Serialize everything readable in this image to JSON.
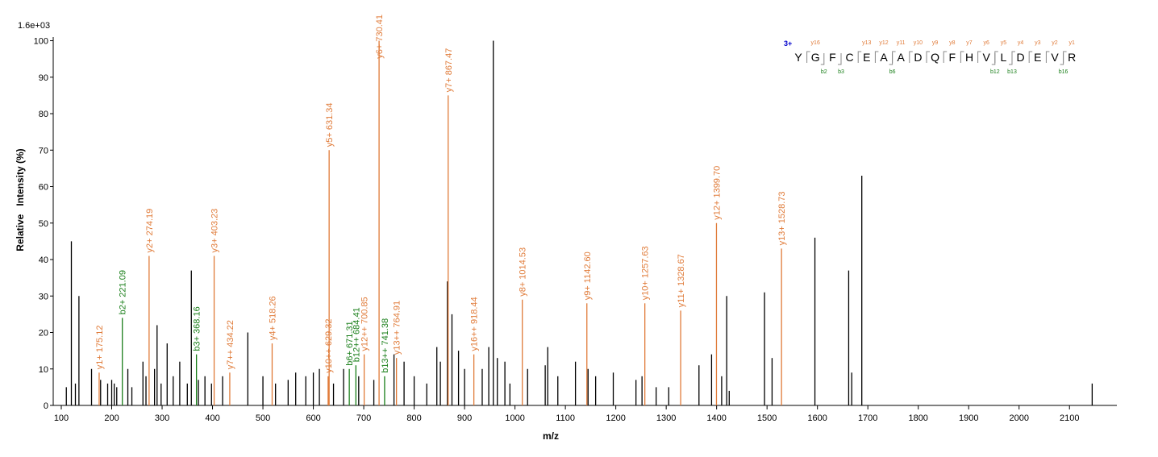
{
  "chart_data": {
    "type": "spectrum",
    "scale_label": "1.6e+03",
    "xlabel": "m/z",
    "ylabel": "Relative   Intensity (%)",
    "xlim": [
      84,
      2194
    ],
    "ylim": [
      0,
      101
    ],
    "xticks": [
      100,
      200,
      300,
      400,
      500,
      600,
      700,
      800,
      900,
      1000,
      1100,
      1200,
      1300,
      1400,
      1500,
      1600,
      1700,
      1800,
      1900,
      2000,
      2100
    ],
    "yticks": [
      0,
      10,
      20,
      30,
      40,
      50,
      60,
      70,
      80,
      90,
      100
    ],
    "series": [
      {
        "color": "#000000",
        "x": [
          110,
          120,
          128,
          135,
          160,
          178,
          192,
          200,
          205,
          210,
          232,
          240,
          262,
          268,
          285,
          290,
          298,
          310,
          322,
          335,
          350,
          358,
          372,
          385,
          398,
          420,
          470,
          500,
          525,
          550,
          565,
          585,
          600,
          612,
          640,
          660,
          690,
          720,
          760,
          780,
          800,
          825,
          845,
          852,
          866,
          875,
          888,
          900,
          935,
          948,
          957,
          965,
          980,
          990,
          1025,
          1060,
          1065,
          1085,
          1120,
          1145,
          1160,
          1195,
          1240,
          1252,
          1280,
          1305,
          1365,
          1390,
          1410,
          1420,
          1425,
          1495,
          1510,
          1595,
          1662,
          1668,
          1688,
          2145
        ],
        "values": [
          5,
          45,
          6,
          30,
          10,
          7,
          6,
          7,
          6,
          5,
          10,
          5,
          12,
          8,
          10,
          22,
          6,
          17,
          8,
          12,
          6,
          37,
          7,
          8,
          6,
          8,
          20,
          8,
          6,
          7,
          9,
          8,
          9,
          10,
          6,
          10,
          8,
          7,
          14,
          12,
          8,
          6,
          16,
          12,
          34,
          25,
          15,
          10,
          10,
          16,
          100,
          13,
          12,
          6,
          10,
          11,
          16,
          8,
          12,
          10,
          8,
          9,
          7,
          8,
          5,
          5,
          11,
          14,
          8,
          30,
          4,
          31,
          13,
          46,
          37,
          9,
          63,
          6
        ]
      },
      {
        "color": "#e07b39",
        "x": [
          175.12,
          274.19,
          403.23,
          434.22,
          518.26,
          629.32,
          631.34,
          700.85,
          730.41,
          764.91,
          867.47,
          918.44,
          1014.53,
          1142.6,
          1257.63,
          1328.67,
          1399.7,
          1528.73
        ],
        "values": [
          9,
          41,
          41,
          9,
          17,
          8,
          70,
          14,
          100,
          13,
          85,
          14,
          29,
          28,
          28,
          26,
          50,
          43
        ],
        "labels": [
          "y1+ 175.12",
          "y2+ 274.19",
          "y3+ 403.23",
          "y7++ 434.22",
          "y4+ 518.26",
          "y10++ 629.32",
          "y5+ 631.34",
          "y12++ 700.85",
          "y6+ 730.41",
          "y13++ 764.91",
          "y7+ 867.47",
          "y16++ 918.44",
          "y8+ 1014.53",
          "y9+ 1142.60",
          "y10+ 1257.63",
          "y11+ 1328.67",
          "y12+ 1399.70",
          "y13+ 1528.73"
        ]
      },
      {
        "color": "#1a7f1a",
        "x": [
          221.09,
          368.16,
          671.31,
          684.41,
          741.38
        ],
        "values": [
          24,
          14,
          10,
          11,
          8
        ],
        "labels": [
          "b2+ 221.09",
          "b3+ 368.16",
          "b6+ 671.31",
          "b12++ 684.41",
          "b13++ 741.38"
        ]
      }
    ]
  },
  "sequence": {
    "charge": "3+",
    "residues": [
      "Y",
      "G",
      "F",
      "C",
      "E",
      "A",
      "A",
      "D",
      "Q",
      "F",
      "H",
      "V",
      "L",
      "D",
      "E",
      "V",
      "R"
    ],
    "y_ions": [
      "y16",
      "y13",
      "y12",
      "y11",
      "y10",
      "y9",
      "y8",
      "y7",
      "y6",
      "y5",
      "y4",
      "y3",
      "y2",
      "y1"
    ],
    "b_ions": [
      "b2",
      "b3",
      "b6",
      "b12",
      "b13",
      "b16"
    ]
  }
}
